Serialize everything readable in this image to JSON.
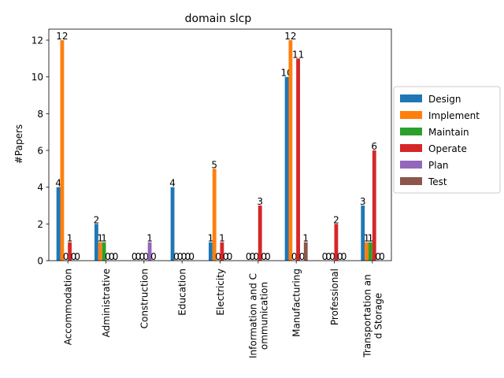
{
  "chart_data": {
    "type": "bar",
    "title": "domain slcp",
    "xlabel": "",
    "ylabel": "#Papers",
    "ylim": [
      0,
      12.6
    ],
    "yticks": [
      0,
      2,
      4,
      6,
      8,
      10,
      12
    ],
    "grid": false,
    "legend_position": "right",
    "categories": [
      [
        "Accommodation"
      ],
      [
        "Administrative"
      ],
      [
        "Construction"
      ],
      [
        "Education"
      ],
      [
        "Electricity"
      ],
      [
        "Information and C",
        "ommunication"
      ],
      [
        "Manufacturing"
      ],
      [
        "Professional"
      ],
      [
        "Transportation an",
        "d Storage"
      ]
    ],
    "series": [
      {
        "name": "Design",
        "color": "#1f77b4",
        "values": [
          4,
          2,
          0,
          4,
          1,
          0,
          10,
          0,
          3
        ]
      },
      {
        "name": "Implement",
        "color": "#ff7f0e",
        "values": [
          12,
          1,
          0,
          0,
          5,
          0,
          12,
          0,
          1
        ]
      },
      {
        "name": "Maintain",
        "color": "#2ca02c",
        "values": [
          0,
          1,
          0,
          0,
          0,
          0,
          0,
          0,
          1
        ]
      },
      {
        "name": "Operate",
        "color": "#d62728",
        "values": [
          1,
          0,
          0,
          0,
          1,
          3,
          11,
          2,
          6
        ]
      },
      {
        "name": "Plan",
        "color": "#9467bd",
        "values": [
          0,
          0,
          1,
          0,
          0,
          0,
          0,
          0,
          0
        ]
      },
      {
        "name": "Test",
        "color": "#8c564b",
        "values": [
          0,
          0,
          0,
          0,
          0,
          0,
          1,
          0,
          0
        ]
      }
    ]
  }
}
